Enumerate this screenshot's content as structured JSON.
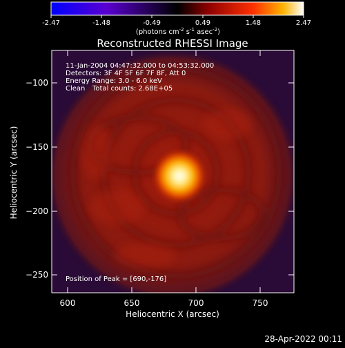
{
  "colorbar": {
    "ticks": [
      "-2.47",
      "-1.48",
      "-0.49",
      "0.49",
      "1.48",
      "2.47"
    ],
    "units_prefix": "(photons cm",
    "units_exp1": "-2",
    "units_mid1": " s",
    "units_exp2": "-1",
    "units_mid2": " asec",
    "units_exp3": "-2",
    "units_suffix": ")",
    "colors": [
      "#0000ff",
      "#6a00c0",
      "#000000",
      "#8c0000",
      "#ff3000",
      "#ffb000",
      "#ffffff"
    ]
  },
  "title": "Reconstructed RHESSI Image",
  "info": {
    "line1": "11-Jan-2004 04:47:32.000 to 04:53:32.000",
    "line2": "Detectors: 3F 4F 5F 6F 7F 8F, Att 0",
    "line3": "Energy Range: 3.0 - 6.0 keV",
    "line4_a": "Clean",
    "line4_b": "Total counts: 2.68E+05"
  },
  "peak_label": "Position of Peak = [690,-176]",
  "axes": {
    "x_title": "Heliocentric X (arcsec)",
    "y_title": "Heliocentric Y (arcsec)",
    "x_ticks": [
      "600",
      "650",
      "700",
      "750"
    ],
    "y_ticks": [
      "−100",
      "−150",
      "−200",
      "−250"
    ]
  },
  "footer_date": "28-Apr-2022 00:11"
}
